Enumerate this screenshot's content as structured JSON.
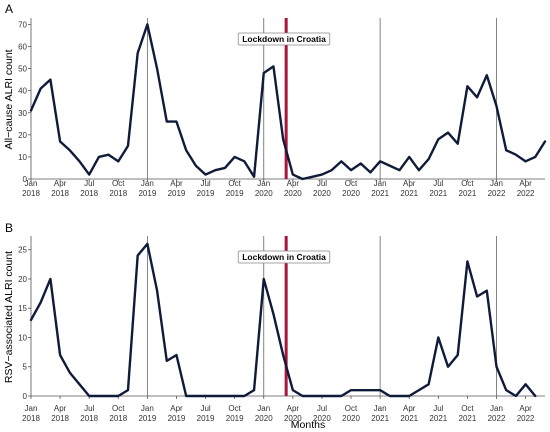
{
  "chart_data": [
    {
      "type": "line",
      "panel_label": "A",
      "ylabel": "All−cause ALRI count",
      "ylim": [
        0,
        72
      ],
      "yticks": [
        0,
        10,
        20,
        30,
        40,
        50,
        60,
        70
      ],
      "x_axis_range": [
        "2018-01",
        "2022-06"
      ],
      "x_tick_labels": [
        {
          "date": "2018-01",
          "month": "Jan",
          "year": "2018"
        },
        {
          "date": "2018-04",
          "month": "Apr",
          "year": "2018"
        },
        {
          "date": "2018-07",
          "month": "Jul",
          "year": "2018"
        },
        {
          "date": "2018-10",
          "month": "Oct",
          "year": "2018"
        },
        {
          "date": "2019-01",
          "month": "Jan",
          "year": "2019"
        },
        {
          "date": "2019-04",
          "month": "Apr",
          "year": "2019"
        },
        {
          "date": "2019-07",
          "month": "Jul",
          "year": "2019"
        },
        {
          "date": "2019-10",
          "month": "Oct",
          "year": "2019"
        },
        {
          "date": "2020-01",
          "month": "Jan",
          "year": "2020"
        },
        {
          "date": "2020-04",
          "month": "Apr",
          "year": "2020"
        },
        {
          "date": "2020-07",
          "month": "Jul",
          "year": "2020"
        },
        {
          "date": "2020-10",
          "month": "Oct",
          "year": "2020"
        },
        {
          "date": "2021-01",
          "month": "Jan",
          "year": "2021"
        },
        {
          "date": "2021-04",
          "month": "Apr",
          "year": "2021"
        },
        {
          "date": "2021-07",
          "month": "Jul",
          "year": "2021"
        },
        {
          "date": "2021-10",
          "month": "Oct",
          "year": "2021"
        },
        {
          "date": "2022-01",
          "month": "Jan",
          "year": "2022"
        },
        {
          "date": "2022-04",
          "month": "Apr",
          "year": "2022"
        }
      ],
      "vlines": [
        "2019-01",
        "2020-01",
        "2021-01",
        "2022-01"
      ],
      "lockdown": {
        "date": "2020-03",
        "label": "Lockdown in Croatia"
      },
      "series": [
        {
          "x": [
            "2018-01",
            "2018-02",
            "2018-03",
            "2018-04",
            "2018-05",
            "2018-06",
            "2018-07",
            "2018-08",
            "2018-09",
            "2018-10",
            "2018-11",
            "2018-12",
            "2019-01",
            "2019-02",
            "2019-03",
            "2019-04",
            "2019-05",
            "2019-06",
            "2019-07",
            "2019-08",
            "2019-09",
            "2019-10",
            "2019-11",
            "2019-12",
            "2020-01",
            "2020-02",
            "2020-03",
            "2020-04",
            "2020-05",
            "2020-06",
            "2020-07",
            "2020-08",
            "2020-09",
            "2020-10",
            "2020-11",
            "2020-12",
            "2021-01",
            "2021-02",
            "2021-03",
            "2021-04",
            "2021-05",
            "2021-06",
            "2021-07",
            "2021-08",
            "2021-09",
            "2021-10",
            "2021-11",
            "2021-12",
            "2022-01",
            "2022-02",
            "2022-03",
            "2022-04",
            "2022-05",
            "2022-06"
          ],
          "values": [
            31,
            41,
            45,
            17,
            13,
            8,
            2,
            10,
            11,
            8,
            15,
            57,
            70,
            50,
            26,
            26,
            13,
            6,
            2,
            4,
            5,
            10,
            8,
            1,
            48,
            51,
            18,
            2,
            0,
            1,
            2,
            4,
            8,
            4,
            7,
            3,
            8,
            6,
            4,
            10,
            4,
            9,
            18,
            21,
            16,
            42,
            37,
            47,
            33,
            13,
            11,
            8,
            10,
            17
          ]
        }
      ]
    },
    {
      "type": "line",
      "panel_label": "B",
      "ylabel": "RSV−associated ALRI count",
      "xlabel": "Months",
      "ylim": [
        0,
        27
      ],
      "yticks": [
        0,
        5,
        10,
        15,
        20,
        25
      ],
      "x_axis_range": [
        "2018-01",
        "2022-06"
      ],
      "x_tick_labels": [
        {
          "date": "2018-01",
          "month": "Jan",
          "year": "2018"
        },
        {
          "date": "2018-04",
          "month": "Apr",
          "year": "2018"
        },
        {
          "date": "2018-07",
          "month": "Jul",
          "year": "2018"
        },
        {
          "date": "2018-10",
          "month": "Oct",
          "year": "2018"
        },
        {
          "date": "2019-01",
          "month": "Jan",
          "year": "2019"
        },
        {
          "date": "2019-04",
          "month": "Apr",
          "year": "2019"
        },
        {
          "date": "2019-07",
          "month": "Jul",
          "year": "2019"
        },
        {
          "date": "2019-10",
          "month": "Oct",
          "year": "2019"
        },
        {
          "date": "2020-01",
          "month": "Jan",
          "year": "2020"
        },
        {
          "date": "2020-04",
          "month": "Apr",
          "year": "2020"
        },
        {
          "date": "2020-07",
          "month": "Jul",
          "year": "2020"
        },
        {
          "date": "2020-10",
          "month": "Oct",
          "year": "2020"
        },
        {
          "date": "2021-01",
          "month": "Jan",
          "year": "2021"
        },
        {
          "date": "2021-04",
          "month": "Apr",
          "year": "2021"
        },
        {
          "date": "2021-07",
          "month": "Jul",
          "year": "2021"
        },
        {
          "date": "2021-10",
          "month": "Oct",
          "year": "2021"
        },
        {
          "date": "2022-01",
          "month": "Jan",
          "year": "2022"
        },
        {
          "date": "2022-04",
          "month": "Apr",
          "year": "2022"
        }
      ],
      "vlines": [
        "2019-01",
        "2020-01",
        "2021-01",
        "2022-01"
      ],
      "lockdown": {
        "date": "2020-03",
        "label": "Lockdown in Croatia"
      },
      "series": [
        {
          "x": [
            "2018-01",
            "2018-02",
            "2018-03",
            "2018-04",
            "2018-05",
            "2018-06",
            "2018-07",
            "2018-08",
            "2018-09",
            "2018-10",
            "2018-11",
            "2018-12",
            "2019-01",
            "2019-02",
            "2019-03",
            "2019-04",
            "2019-05",
            "2019-06",
            "2019-07",
            "2019-08",
            "2019-09",
            "2019-10",
            "2019-11",
            "2019-12",
            "2020-01",
            "2020-02",
            "2020-03",
            "2020-04",
            "2020-05",
            "2020-06",
            "2020-07",
            "2020-08",
            "2020-09",
            "2020-10",
            "2020-11",
            "2020-12",
            "2021-01",
            "2021-02",
            "2021-03",
            "2021-04",
            "2021-05",
            "2021-06",
            "2021-07",
            "2021-08",
            "2021-09",
            "2021-10",
            "2021-11",
            "2021-12",
            "2022-01",
            "2022-02",
            "2022-03",
            "2022-04",
            "2022-05"
          ],
          "values": [
            13,
            16,
            20,
            7,
            4,
            2,
            0,
            0,
            0,
            0,
            1,
            24,
            26,
            18,
            6,
            7,
            0,
            0,
            0,
            0,
            0,
            0,
            0,
            1,
            20,
            14,
            7,
            1,
            0,
            0,
            0,
            0,
            0,
            1,
            1,
            1,
            1,
            0,
            0,
            0,
            1,
            2,
            10,
            5,
            7,
            23,
            17,
            18,
            5,
            1,
            0,
            2,
            0
          ]
        }
      ]
    }
  ],
  "colors": {
    "line": "#101b3a",
    "lockdown": "#a8163c",
    "vline": "#666666",
    "axis": "#555555"
  }
}
